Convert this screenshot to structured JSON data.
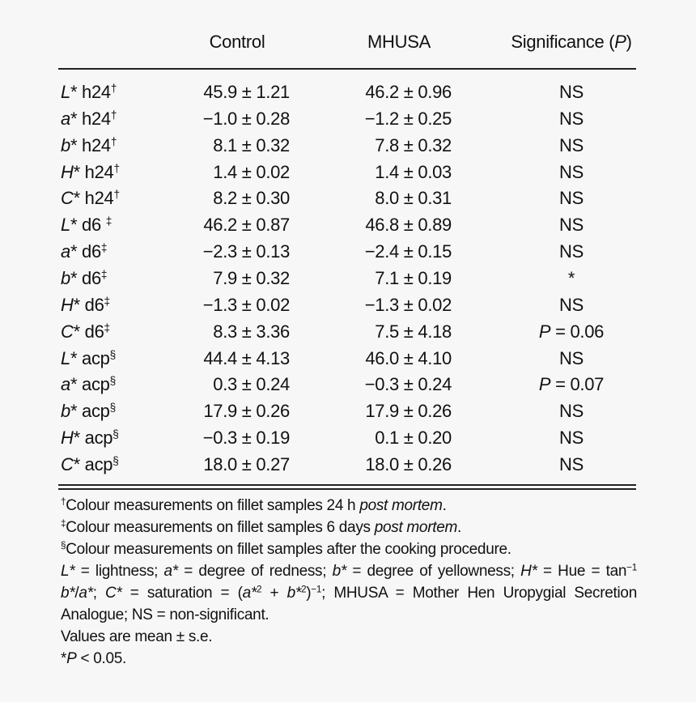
{
  "header": [
    [
      {
        "t": "Control"
      }
    ],
    [
      {
        "t": "MHUSA"
      }
    ],
    [
      {
        "t": "Significance ("
      },
      {
        "t": "P",
        "s": "i"
      },
      {
        "t": ")"
      }
    ]
  ],
  "rows": [
    {
      "label": [
        {
          "t": "L",
          "s": "i"
        },
        {
          "t": "* h24"
        },
        {
          "t": "†",
          "s": "sup"
        }
      ],
      "control": "45.9 ± 1.21",
      "mhusa": "46.2 ± 0.96",
      "sig": [
        {
          "t": "NS"
        }
      ]
    },
    {
      "label": [
        {
          "t": "a",
          "s": "i"
        },
        {
          "t": "* h24"
        },
        {
          "t": "†",
          "s": "sup"
        }
      ],
      "control": "−1.0 ± 0.28",
      "mhusa": "−1.2 ± 0.25",
      "sig": [
        {
          "t": "NS"
        }
      ]
    },
    {
      "label": [
        {
          "t": "b",
          "s": "i"
        },
        {
          "t": "* h24"
        },
        {
          "t": "†",
          "s": "sup"
        }
      ],
      "control": "8.1 ± 0.32",
      "mhusa": "7.8 ± 0.32",
      "sig": [
        {
          "t": "NS"
        }
      ]
    },
    {
      "label": [
        {
          "t": "H",
          "s": "i"
        },
        {
          "t": "* h24"
        },
        {
          "t": "†",
          "s": "sup"
        }
      ],
      "control": "1.4 ± 0.02",
      "mhusa": "1.4 ± 0.03",
      "sig": [
        {
          "t": "NS"
        }
      ]
    },
    {
      "label": [
        {
          "t": "C",
          "s": "i"
        },
        {
          "t": "* h24"
        },
        {
          "t": "†",
          "s": "sup"
        }
      ],
      "control": "8.2 ± 0.30",
      "mhusa": "8.0 ± 0.31",
      "sig": [
        {
          "t": "NS"
        }
      ]
    },
    {
      "label": [
        {
          "t": "L",
          "s": "i"
        },
        {
          "t": "* d6 "
        },
        {
          "t": "‡",
          "s": "sup"
        }
      ],
      "control": "46.2 ± 0.87",
      "mhusa": "46.8 ± 0.89",
      "sig": [
        {
          "t": "NS"
        }
      ]
    },
    {
      "label": [
        {
          "t": "a",
          "s": "i"
        },
        {
          "t": "* d6"
        },
        {
          "t": "‡",
          "s": "sup"
        }
      ],
      "control": "−2.3 ± 0.13",
      "mhusa": "−2.4 ± 0.15",
      "sig": [
        {
          "t": "NS"
        }
      ]
    },
    {
      "label": [
        {
          "t": "b",
          "s": "i"
        },
        {
          "t": "* d6"
        },
        {
          "t": "‡",
          "s": "sup"
        }
      ],
      "control": "7.9 ± 0.32",
      "mhusa": "7.1 ± 0.19",
      "sig": [
        {
          "t": "*"
        }
      ]
    },
    {
      "label": [
        {
          "t": "H",
          "s": "i"
        },
        {
          "t": "* d6"
        },
        {
          "t": "‡",
          "s": "sup"
        }
      ],
      "control": "−1.3 ± 0.02",
      "mhusa": "−1.3 ± 0.02",
      "sig": [
        {
          "t": "NS"
        }
      ]
    },
    {
      "label": [
        {
          "t": "C",
          "s": "i"
        },
        {
          "t": "* d6"
        },
        {
          "t": "‡",
          "s": "sup"
        }
      ],
      "control": "8.3 ± 3.36",
      "mhusa": "7.5 ± 4.18",
      "sig": [
        {
          "t": "P",
          "s": "i"
        },
        {
          "t": " = 0.06"
        }
      ]
    },
    {
      "label": [
        {
          "t": "L",
          "s": "i"
        },
        {
          "t": "* acp"
        },
        {
          "t": "§",
          "s": "sup"
        }
      ],
      "control": "44.4 ± 4.13",
      "mhusa": "46.0 ± 4.10",
      "sig": [
        {
          "t": "NS"
        }
      ]
    },
    {
      "label": [
        {
          "t": "a",
          "s": "i"
        },
        {
          "t": "* acp"
        },
        {
          "t": "§",
          "s": "sup"
        }
      ],
      "control": "0.3 ± 0.24",
      "mhusa": "−0.3 ± 0.24",
      "sig": [
        {
          "t": "P",
          "s": "i"
        },
        {
          "t": " = 0.07"
        }
      ]
    },
    {
      "label": [
        {
          "t": "b",
          "s": "i"
        },
        {
          "t": "* acp"
        },
        {
          "t": "§",
          "s": "sup"
        }
      ],
      "control": "17.9 ± 0.26",
      "mhusa": "17.9 ± 0.26",
      "sig": [
        {
          "t": "NS"
        }
      ]
    },
    {
      "label": [
        {
          "t": "H",
          "s": "i"
        },
        {
          "t": "* acp"
        },
        {
          "t": "§",
          "s": "sup"
        }
      ],
      "control": "−0.3 ± 0.19",
      "mhusa": "0.1 ± 0.20",
      "sig": [
        {
          "t": "NS"
        }
      ]
    },
    {
      "label": [
        {
          "t": "C",
          "s": "i"
        },
        {
          "t": "* acp"
        },
        {
          "t": "§",
          "s": "sup"
        }
      ],
      "control": "18.0 ± 0.27",
      "mhusa": "18.0 ± 0.26",
      "sig": [
        {
          "t": "NS"
        }
      ]
    }
  ],
  "notes": [
    [
      {
        "t": "†",
        "s": "sup"
      },
      {
        "t": "Colour measurements on fillet samples 24 h "
      },
      {
        "t": "post mortem",
        "s": "i"
      },
      {
        "t": "."
      }
    ],
    [
      {
        "t": "‡",
        "s": "sup"
      },
      {
        "t": "Colour measurements on fillet samples 6 days "
      },
      {
        "t": "post mortem",
        "s": "i"
      },
      {
        "t": "."
      }
    ],
    [
      {
        "t": "§",
        "s": "sup"
      },
      {
        "t": "Colour measurements on fillet samples after the cooking procedure."
      }
    ],
    [
      {
        "t": "L*",
        "s": "i"
      },
      {
        "t": " = lightness; "
      },
      {
        "t": "a*",
        "s": "i"
      },
      {
        "t": " = degree of redness; "
      },
      {
        "t": "b*",
        "s": "i"
      },
      {
        "t": " = degree of yellowness; "
      },
      {
        "t": "H*",
        "s": "i"
      },
      {
        "t": " = Hue = tan"
      },
      {
        "t": "−1",
        "s": "sup"
      },
      {
        "t": " "
      },
      {
        "t": "b*",
        "s": "i"
      },
      {
        "t": "/"
      },
      {
        "t": "a*",
        "s": "i"
      },
      {
        "t": "; "
      },
      {
        "t": "C*",
        "s": "i"
      },
      {
        "t": " = saturation = ("
      },
      {
        "t": "a*",
        "s": "i"
      },
      {
        "t": "2",
        "s": "sup"
      },
      {
        "t": " + "
      },
      {
        "t": "b*",
        "s": "i"
      },
      {
        "t": "2",
        "s": "sup"
      },
      {
        "t": ")"
      },
      {
        "t": "−1",
        "s": "sup"
      },
      {
        "t": "; MHUSA = Mother Hen Uropygial Secretion Analogue; NS = non-significant."
      }
    ],
    [
      {
        "t": "Values are mean ± s.e."
      }
    ],
    [
      {
        "t": "*"
      },
      {
        "t": "P",
        "s": "i"
      },
      {
        "t": " < 0.05."
      }
    ]
  ]
}
